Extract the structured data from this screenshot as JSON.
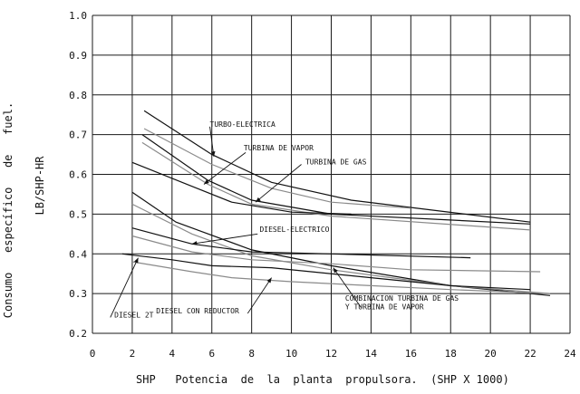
{
  "chart_data": {
    "type": "line",
    "xlabel": "SHP   Potencia  de  la  planta  propulsora.  (SHP X 1000)",
    "ylabel_line1": "Consumo   específico   de   fuel.",
    "ylabel_line2": "LB/SHP-HR",
    "xlim": [
      0,
      24
    ],
    "ylim": [
      0.2,
      1.0
    ],
    "x_ticks": [
      "0",
      "2",
      "4",
      "6",
      "8",
      "10",
      "12",
      "14",
      "16",
      "18",
      "20",
      "22",
      "24"
    ],
    "y_ticks": [
      "0.2",
      "0.3",
      "0.4",
      "0.5",
      "0.6",
      "0.7",
      "0.8",
      "0.9",
      "1.0"
    ],
    "grid": true,
    "series": [
      {
        "name": "TURBO-ELECTRICA (upper)",
        "color": "#111111",
        "x": [
          2.6,
          6,
          9,
          13,
          22
        ],
        "y": [
          0.76,
          0.65,
          0.58,
          0.535,
          0.48
        ]
      },
      {
        "name": "TURBO-ELECTRICA (lower)",
        "color": "#8a8a8a",
        "x": [
          2.6,
          6,
          9,
          12,
          16
        ],
        "y": [
          0.715,
          0.625,
          0.565,
          0.53,
          0.515
        ]
      },
      {
        "name": "TURBINA DE VAPOR (upper)",
        "color": "#111111",
        "x": [
          2.5,
          5.8,
          8,
          12,
          22
        ],
        "y": [
          0.7,
          0.585,
          0.535,
          0.5,
          0.475
        ]
      },
      {
        "name": "TURBINA DE VAPOR (lower)",
        "color": "#8a8a8a",
        "x": [
          2.5,
          5.8,
          8,
          12,
          22
        ],
        "y": [
          0.68,
          0.575,
          0.525,
          0.495,
          0.46
        ]
      },
      {
        "name": "TURBINA DE GAS",
        "color": "#111111",
        "x": [
          2,
          5,
          7,
          10,
          13
        ],
        "y": [
          0.63,
          0.57,
          0.53,
          0.505,
          0.5
        ]
      },
      {
        "name": "DIESEL-ELECTRICO (upper)",
        "color": "#111111",
        "x": [
          2,
          4.2,
          8,
          12,
          18,
          23
        ],
        "y": [
          0.555,
          0.48,
          0.41,
          0.37,
          0.32,
          0.295
        ]
      },
      {
        "name": "DIESEL-ELECTRICO (lower)",
        "color": "#8a8a8a",
        "x": [
          2,
          5,
          8,
          12,
          18,
          23
        ],
        "y": [
          0.525,
          0.45,
          0.395,
          0.36,
          0.32,
          0.3
        ]
      },
      {
        "name": "COMBINACION TURBINA DE GAS Y TURBINA DE VAPOR (1)",
        "color": "#111111",
        "x": [
          2,
          5,
          8,
          12,
          19
        ],
        "y": [
          0.465,
          0.425,
          0.405,
          0.4,
          0.39
        ]
      },
      {
        "name": "COMBINACION TURBINA DE GAS Y TURBINA DE VAPOR (2)",
        "color": "#8a8a8a",
        "x": [
          2,
          5,
          8,
          12,
          16,
          22.5
        ],
        "y": [
          0.445,
          0.405,
          0.385,
          0.375,
          0.36,
          0.355
        ]
      },
      {
        "name": "DIESEL 2T",
        "color": "#111111",
        "x": [
          1.5,
          4,
          6,
          9,
          14,
          18,
          22
        ],
        "y": [
          0.4,
          0.385,
          0.37,
          0.365,
          0.34,
          0.32,
          0.31
        ]
      },
      {
        "name": "DIESEL CON REDUCTOR",
        "color": "#8a8a8a",
        "x": [
          2,
          5,
          7,
          10,
          14,
          18,
          23
        ],
        "y": [
          0.38,
          0.355,
          0.34,
          0.33,
          0.32,
          0.31,
          0.3
        ]
      }
    ],
    "annotations": [
      {
        "text": "TURBO-ELECTRICA",
        "tx": 5.9,
        "ty": 0.72,
        "ax": 5.9,
        "ay": 0.72,
        "px": 6.1,
        "py": 0.645
      },
      {
        "text": "TURBINA  DE  VAPOR",
        "tx": 7.6,
        "ty": 0.66,
        "ax": 7.7,
        "ay": 0.655,
        "px": 5.6,
        "py": 0.575
      },
      {
        "text": "TURBINA  DE  GAS",
        "tx": 10.7,
        "ty": 0.625,
        "ax": 10.5,
        "ay": 0.625,
        "px": 8.2,
        "py": 0.53
      },
      {
        "text": "DIESEL-ELECTRICO",
        "tx": 8.4,
        "ty": 0.455,
        "ax": 8.3,
        "ay": 0.45,
        "px": 5.0,
        "py": 0.425
      },
      {
        "text": "COMBINACION  TURBINA  DE  GAS",
        "tx": 12.7,
        "ty": 0.282,
        "ax": 13.5,
        "ay": 0.265,
        "px": 12.1,
        "py": 0.365
      },
      {
        "text": "Y  TURBINA  DE  VAPOR",
        "tx": 12.7,
        "ty": 0.26,
        "ax": null,
        "ay": null,
        "px": null,
        "py": null
      },
      {
        "text": "DIESEL  2T",
        "tx": 1.1,
        "ty": 0.24,
        "ax": 0.9,
        "ay": 0.24,
        "px": 2.3,
        "py": 0.39
      },
      {
        "text": "DIESEL  CON  REDUCTOR",
        "tx": 3.2,
        "ty": 0.25,
        "ax": 7.8,
        "ay": 0.25,
        "px": 9.0,
        "py": 0.34
      }
    ]
  }
}
